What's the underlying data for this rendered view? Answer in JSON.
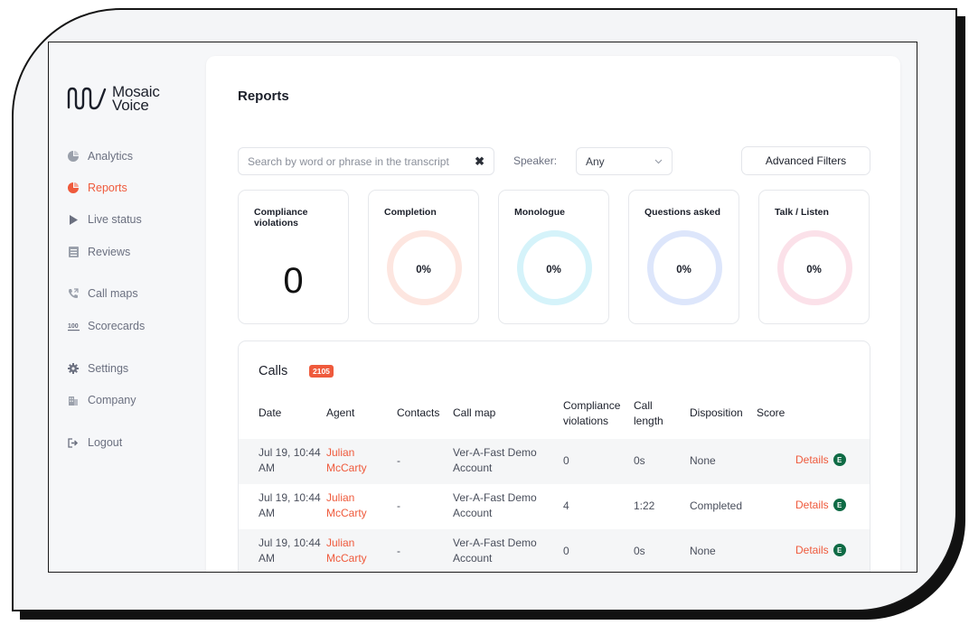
{
  "brand": {
    "name_line1": "Mosaic",
    "name_line2": "Voice"
  },
  "sidebar": {
    "items": [
      {
        "label": "Analytics",
        "icon": "pie-chart-icon"
      },
      {
        "label": "Reports",
        "icon": "pie-chart-icon",
        "active": true
      },
      {
        "label": "Live status",
        "icon": "play-icon"
      },
      {
        "label": "Reviews",
        "icon": "list-icon"
      },
      {
        "label": "Call maps",
        "icon": "phone-icon"
      },
      {
        "label": "Scorecards",
        "icon": "scorecard-icon"
      },
      {
        "label": "Settings",
        "icon": "gear-icon"
      },
      {
        "label": "Company",
        "icon": "building-icon"
      },
      {
        "label": "Logout",
        "icon": "logout-icon"
      }
    ]
  },
  "page": {
    "title": "Reports"
  },
  "filters": {
    "search_placeholder": "Search by word or phrase in the transcript",
    "clear_glyph": "✖",
    "speaker_label": "Speaker:",
    "speaker_value": "Any",
    "advanced_label": "Advanced Filters"
  },
  "metrics": [
    {
      "label": "Compliance violations",
      "value": "0"
    },
    {
      "label": "Completion",
      "value": "0%",
      "ring_color": "#fde6e0"
    },
    {
      "label": "Monologue",
      "value": "0%",
      "ring_color": "#d5f3fa"
    },
    {
      "label": "Questions asked",
      "value": "0%",
      "ring_color": "#dde6fb"
    },
    {
      "label": "Talk / Listen",
      "value": "0%",
      "ring_color": "#fbe1e9"
    }
  ],
  "calls": {
    "title": "Calls",
    "count": "2105",
    "headers": [
      "Date",
      "Agent",
      "Contacts",
      "Call map",
      "Compliance violations",
      "Call length",
      "Disposition",
      "Score"
    ],
    "rows": [
      {
        "date": "Jul 19, 10:44 AM",
        "agent": "Julian McCarty",
        "contacts": "-",
        "callmap": "Ver-A-Fast Demo Account",
        "violations": "0",
        "length": "0s",
        "disposition": "None",
        "details": "Details",
        "badge": "E"
      },
      {
        "date": "Jul 19, 10:44 AM",
        "agent": "Julian McCarty",
        "contacts": "-",
        "callmap": "Ver-A-Fast Demo Account",
        "violations": "4",
        "length": "1:22",
        "disposition": "Completed",
        "details": "Details",
        "badge": "E"
      },
      {
        "date": "Jul 19, 10:44 AM",
        "agent": "Julian McCarty",
        "contacts": "-",
        "callmap": "Ver-A-Fast Demo Account",
        "violations": "0",
        "length": "0s",
        "disposition": "None",
        "details": "Details",
        "badge": "E"
      }
    ]
  },
  "colors": {
    "accent": "#ef5a3c",
    "badge_green": "#0f6b45"
  }
}
